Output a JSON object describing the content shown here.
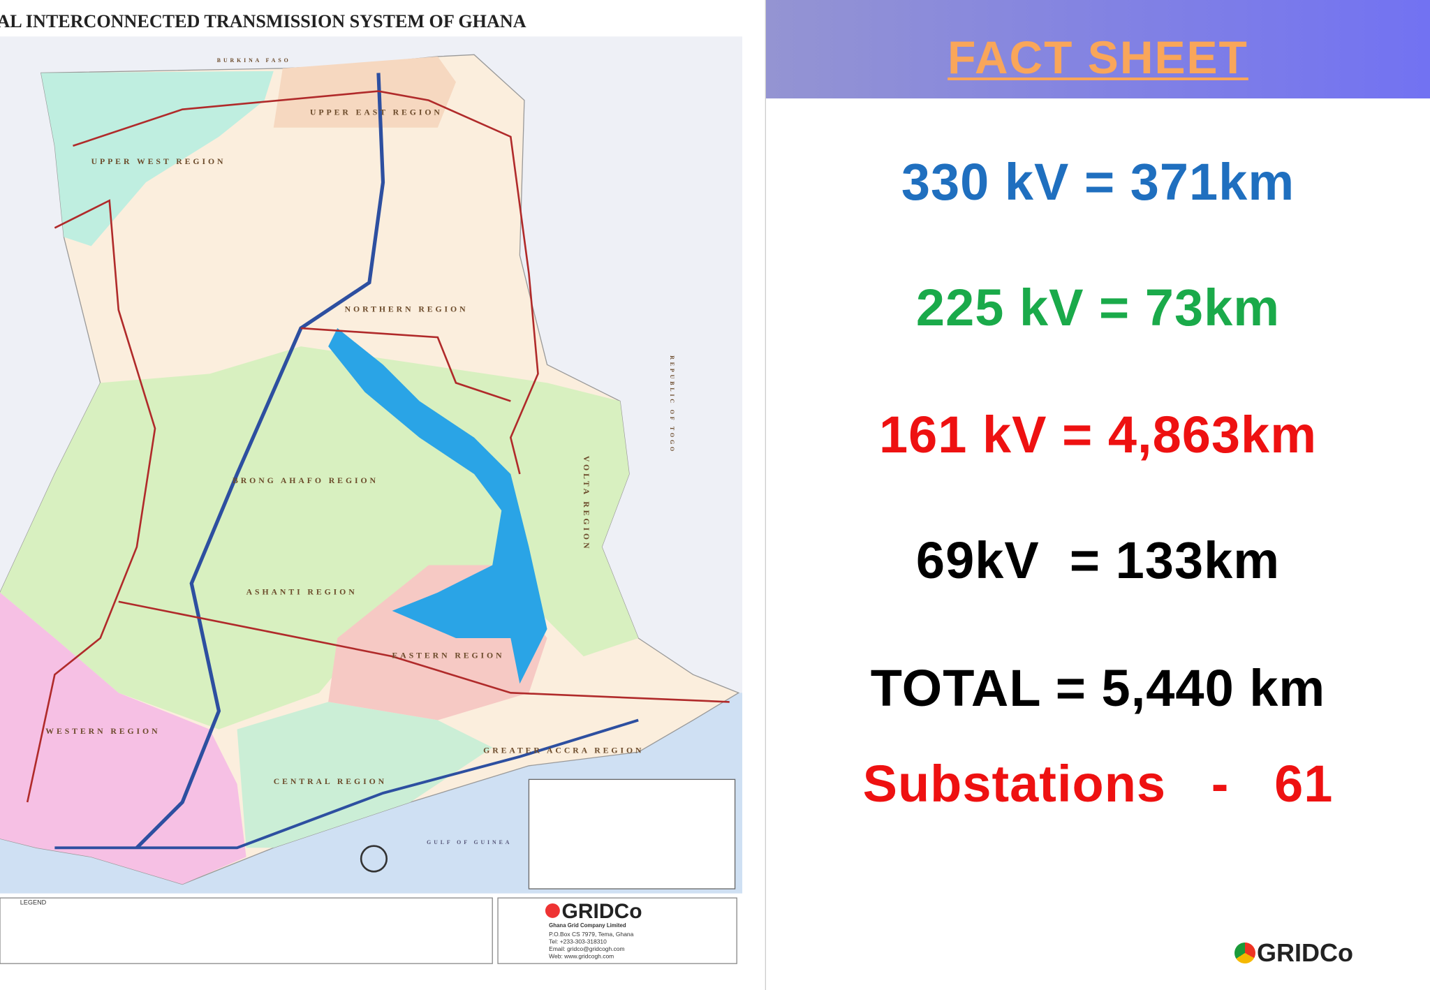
{
  "map": {
    "title": "NATIONAL INTERCONNECTED TRANSMISSION SYSTEM OF GHANA",
    "labels": [
      "BURKINA FASO",
      "UPPER EAST REGION",
      "UPPER WEST REGION",
      "NORTHERN REGION",
      "BRONG AHAFO REGION",
      "ASHANTI REGION",
      "EASTERN REGION",
      "WESTERN REGION",
      "CENTRAL REGION",
      "GREATER ACCRA REGION",
      "VOLTA REGION",
      "REPUBLIC OF TOGO",
      "GULF OF GUINEA"
    ],
    "legend": {
      "title": "LEGEND"
    },
    "company": {
      "name": "GRIDCo",
      "lines": [
        "Ghana Grid Company Limited",
        "P.O.Box CS 7979, Tema, Ghana",
        "Tel: +233-303-318310",
        "Email: gridco@gridcogh.com",
        "Web: www.gridcogh.com"
      ]
    }
  },
  "fact_sheet": {
    "title": "FACT SHEET",
    "facts": [
      "330 kV = 371km",
      "225 kV = 73km",
      "161 kV = 4,863km",
      "69kV  = 133km",
      "TOTAL = 5,440 km",
      "Substations   -   61"
    ],
    "logo": "GRIDCo"
  }
}
